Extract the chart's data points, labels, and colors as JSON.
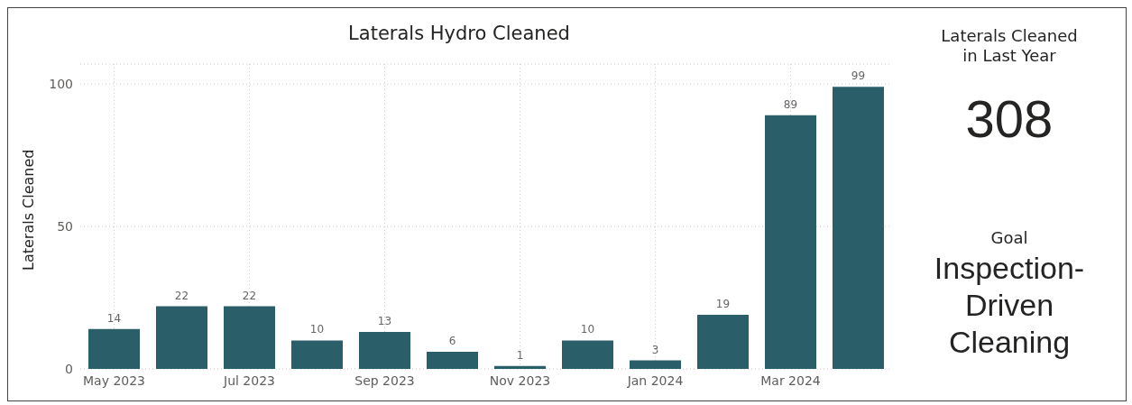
{
  "chart_data": {
    "type": "bar",
    "title": "Laterals Hydro Cleaned",
    "ylabel": "Laterals Cleaned",
    "categories": [
      "May 2023",
      null,
      "Jul 2023",
      null,
      "Sep 2023",
      null,
      "Nov 2023",
      null,
      "Jan 2024",
      null,
      "Mar 2024",
      null
    ],
    "values": [
      14,
      22,
      22,
      10,
      13,
      6,
      1,
      10,
      3,
      19,
      89,
      99
    ],
    "color": "#2a5f6a",
    "ylim": [
      0,
      107
    ],
    "yticks": [
      0,
      50,
      100
    ],
    "grid": true,
    "data_labels": true,
    "annotations": [
      "Laterals Cleaned in Last Year",
      "308",
      "Goal",
      "Inspection-Driven Cleaning"
    ]
  }
}
